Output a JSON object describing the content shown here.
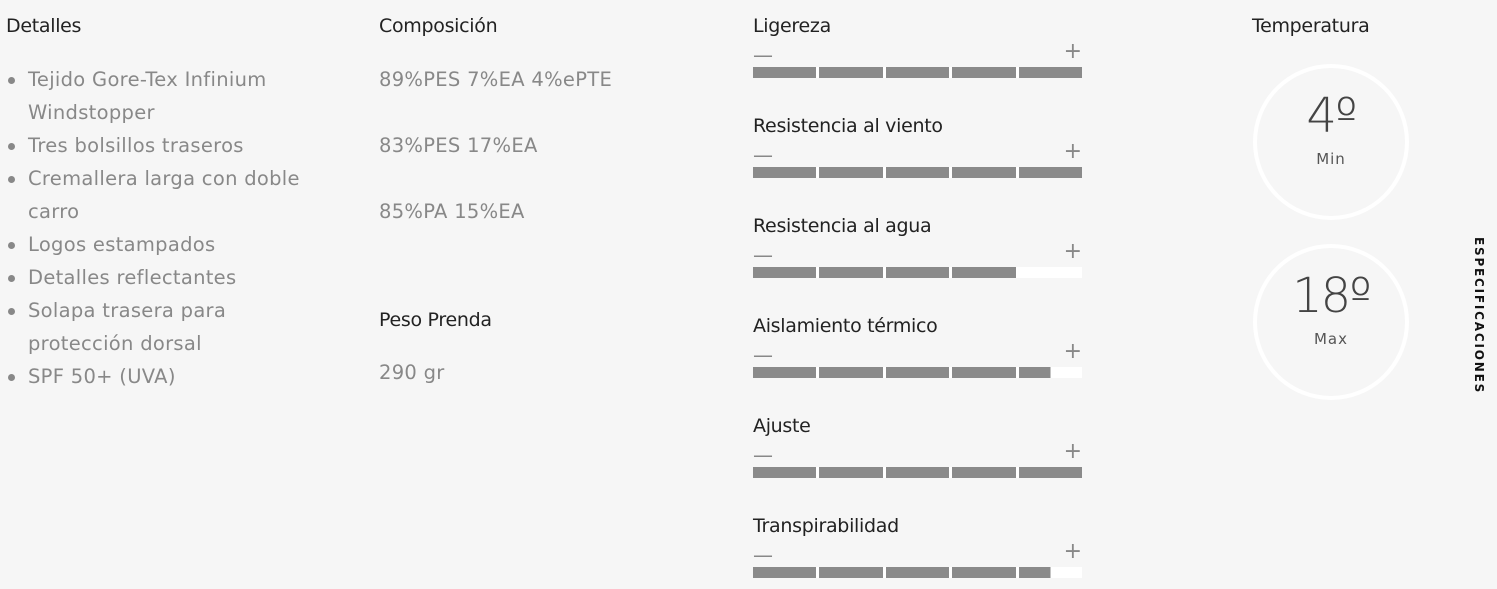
{
  "detalles": {
    "title": "Detalles",
    "items": [
      "Tejido Gore-Tex Infinium Windstopper",
      "Tres bolsillos traseros",
      "Cremallera larga con doble carro",
      "Logos estampados",
      "Detalles reflectantes",
      "Solapa trasera para protección dorsal",
      "SPF 50+ (UVA)"
    ]
  },
  "composicion": {
    "title": "Composición",
    "items": [
      "89%PES 7%EA 4%ePTE",
      "83%PES 17%EA",
      "85%PA 15%EA"
    ],
    "peso_title": "Peso Prenda",
    "peso": "290 gr"
  },
  "ratings": {
    "minus": "—",
    "plus": "+",
    "max": 5,
    "items": [
      {
        "label": "Ligereza",
        "value": 5
      },
      {
        "label": "Resistencia al viento",
        "value": 5
      },
      {
        "label": "Resistencia al agua",
        "value": 4
      },
      {
        "label": "Aislamiento térmico",
        "value": 4.5
      },
      {
        "label": "Ajuste",
        "value": 5
      },
      {
        "label": "Transpirabilidad",
        "value": 4.5
      }
    ]
  },
  "temperatura": {
    "title": "Temperatura",
    "min": {
      "value": "4º",
      "label": "Min"
    },
    "max": {
      "value": "18º",
      "label": "Max"
    }
  },
  "side_tab": "ESPECIFICACIONES"
}
